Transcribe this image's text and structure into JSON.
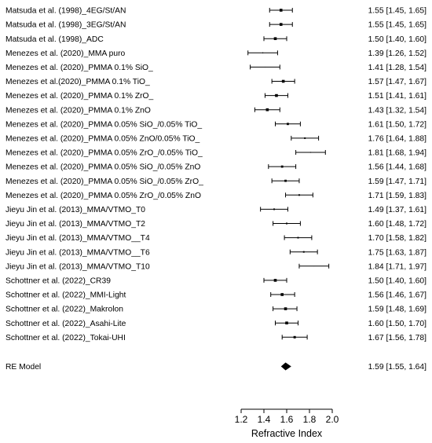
{
  "chart_data": {
    "type": "forest",
    "title": "",
    "xlabel": "Refractive Index",
    "ylabel": "",
    "xlim": [
      1.2,
      2.0
    ],
    "xticks": [
      1.2,
      1.4,
      1.6,
      1.8,
      2.0
    ],
    "xtick_labels": [
      "1.2",
      "1.4",
      "1.6",
      "1.8",
      "2.0"
    ],
    "grid": false,
    "legend": "none",
    "studies": [
      {
        "label": "Matsuda et al. (1998)_4EG/St/AN",
        "estimate": 1.55,
        "lower": 1.45,
        "upper": 1.65,
        "ci_text": "1.55 [1.45, 1.65]",
        "weight": 3.6
      },
      {
        "label": "Matsuda et al. (1998)_3EG/St/AN",
        "estimate": 1.55,
        "lower": 1.45,
        "upper": 1.65,
        "ci_text": "1.55 [1.45, 1.65]",
        "weight": 3.6
      },
      {
        "label": "Matsuda et al. (1998)_ADC",
        "estimate": 1.5,
        "lower": 1.4,
        "upper": 1.6,
        "ci_text": "1.50 [1.40, 1.60]",
        "weight": 3.6
      },
      {
        "label": "Menezes et al. (2020)_MMA puro",
        "estimate": 1.39,
        "lower": 1.26,
        "upper": 1.52,
        "ci_text": "1.39 [1.26, 1.52]",
        "weight": 1.2
      },
      {
        "label": "Menezes et al. (2020)_PMMA 0.1% SiO_",
        "estimate": 1.41,
        "lower": 1.28,
        "upper": 1.54,
        "ci_text": "1.41 [1.28, 1.54]",
        "weight": 0.6
      },
      {
        "label": "Menezes et al.(2020)_PMMA 0.1% TiO_",
        "estimate": 1.57,
        "lower": 1.47,
        "upper": 1.67,
        "ci_text": "1.57 [1.47, 1.67]",
        "weight": 3.6
      },
      {
        "label": "Menezes et al. (2020)_PMMA 0.1% ZrO_",
        "estimate": 1.51,
        "lower": 1.41,
        "upper": 1.61,
        "ci_text": "1.51 [1.41, 1.61]",
        "weight": 3.6
      },
      {
        "label": "Menezes et al. (2020)_PMMA 0.1% ZnO",
        "estimate": 1.43,
        "lower": 1.32,
        "upper": 1.54,
        "ci_text": "1.43 [1.32, 1.54]",
        "weight": 3.6
      },
      {
        "label": "Menezes et al. (2020)_PMMA 0.05% SiO_/0.05% TiO_",
        "estimate": 1.61,
        "lower": 1.5,
        "upper": 1.72,
        "ci_text": "1.61 [1.50, 1.72]",
        "weight": 2.8
      },
      {
        "label": "Menezes et al. (2020)_PMMA 0.05% ZnO/0.05% TiO_",
        "estimate": 1.76,
        "lower": 1.64,
        "upper": 1.88,
        "ci_text": "1.76 [1.64, 1.88]",
        "weight": 2.0
      },
      {
        "label": "Menezes et al. (2020)_PMMA 0.05% ZrO_/0.05% TiO_",
        "estimate": 1.81,
        "lower": 1.68,
        "upper": 1.94,
        "ci_text": "1.81 [1.68, 1.94]",
        "weight": 1.2
      },
      {
        "label": "Menezes et al. (2020)_PMMA 0.05% SiO_/0.05% ZnO",
        "estimate": 1.56,
        "lower": 1.44,
        "upper": 1.68,
        "ci_text": "1.56 [1.44, 1.68]",
        "weight": 2.8
      },
      {
        "label": "Menezes et al. (2020)_PMMA 0.05% SiO_/0.05% ZrO_",
        "estimate": 1.59,
        "lower": 1.47,
        "upper": 1.71,
        "ci_text": "1.59 [1.47, 1.71]",
        "weight": 2.8
      },
      {
        "label": "Menezes et al. (2020)_PMMA 0.05% ZrO_/0.05% ZnO",
        "estimate": 1.71,
        "lower": 1.59,
        "upper": 1.83,
        "ci_text": "1.71 [1.59, 1.83]",
        "weight": 2.0
      },
      {
        "label": "Jieyu Jin et al. (2013)_MMA/VTMO_T0",
        "estimate": 1.49,
        "lower": 1.37,
        "upper": 1.61,
        "ci_text": "1.49 [1.37, 1.61]",
        "weight": 2.0
      },
      {
        "label": "Jieyu Jin et al. (2013)_MMA/VTMO_T2",
        "estimate": 1.6,
        "lower": 1.48,
        "upper": 1.72,
        "ci_text": "1.60 [1.48, 1.72]",
        "weight": 2.0
      },
      {
        "label": "Jieyu Jin et al. (2013)_MMA/VTMO__T4",
        "estimate": 1.7,
        "lower": 1.58,
        "upper": 1.82,
        "ci_text": "1.70 [1.58, 1.82]",
        "weight": 2.0
      },
      {
        "label": "Jieyu Jin et al. (2013)_MMA/VTMO__T6",
        "estimate": 1.75,
        "lower": 1.63,
        "upper": 1.87,
        "ci_text": "1.75 [1.63, 1.87]",
        "weight": 2.0
      },
      {
        "label": "Jieyu Jin et al. (2013)_MMA/VTMO_T10",
        "estimate": 1.84,
        "lower": 1.71,
        "upper": 1.97,
        "ci_text": "1.84 [1.71, 1.97]",
        "weight": 0.6
      },
      {
        "label": "Schottner et al. (2022)_CR39",
        "estimate": 1.5,
        "lower": 1.4,
        "upper": 1.6,
        "ci_text": "1.50 [1.40, 1.60]",
        "weight": 3.6
      },
      {
        "label": "Schottner et al. (2022)_MMI-Light",
        "estimate": 1.56,
        "lower": 1.46,
        "upper": 1.67,
        "ci_text": "1.56 [1.46, 1.67]",
        "weight": 3.6
      },
      {
        "label": "Schottner et al. (2022)_Makrolon",
        "estimate": 1.59,
        "lower": 1.48,
        "upper": 1.69,
        "ci_text": "1.59 [1.48, 1.69]",
        "weight": 3.6
      },
      {
        "label": "Schottner et al. (2022)_Asahi-Lite",
        "estimate": 1.6,
        "lower": 1.5,
        "upper": 1.7,
        "ci_text": "1.60 [1.50, 1.70]",
        "weight": 3.6
      },
      {
        "label": "Schottner et al. (2022)_Tokai-UHI",
        "estimate": 1.67,
        "lower": 1.56,
        "upper": 1.78,
        "ci_text": "1.67 [1.56, 1.78]",
        "weight": 3.0
      }
    ],
    "summary": {
      "label": "RE Model",
      "estimate": 1.59,
      "lower": 1.55,
      "upper": 1.64,
      "ci_text": "1.59 [1.55, 1.64]"
    },
    "colors": {
      "ink": "#000000",
      "background": "#ffffff"
    }
  }
}
